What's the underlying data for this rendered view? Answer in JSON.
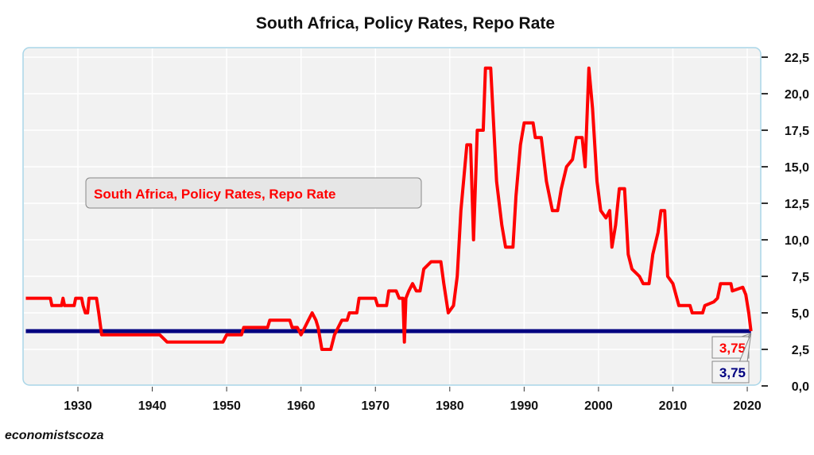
{
  "chart_data": {
    "type": "line",
    "title": "South Africa, Policy Rates, Repo Rate",
    "legend": {
      "label": "South Africa, Policy Rates, Repo Rate",
      "placement": "middle-left"
    },
    "xlim": [
      1923,
      2021.5
    ],
    "ylim": [
      0,
      22.5
    ],
    "x_ticks": [
      "1930",
      "1940",
      "1950",
      "1960",
      "1970",
      "1980",
      "1990",
      "2000",
      "2010",
      "2020"
    ],
    "y_ticks": [
      "0,0",
      "2,5",
      "5,0",
      "7,5",
      "10,0",
      "12,5",
      "15,0",
      "17,5",
      "20,0",
      "22,5"
    ],
    "y_axis_side": "right",
    "grid": true,
    "series": [
      {
        "name": "South Africa, Policy Rates, Repo Rate",
        "color": "#ff0000",
        "points": [
          [
            1923,
            6
          ],
          [
            1926.3,
            6
          ],
          [
            1926.5,
            5.5
          ],
          [
            1927.8,
            5.5
          ],
          [
            1928,
            6
          ],
          [
            1928.2,
            5.5
          ],
          [
            1929.5,
            5.5
          ],
          [
            1929.7,
            6
          ],
          [
            1930.5,
            6
          ],
          [
            1930.7,
            5.5
          ],
          [
            1931,
            5
          ],
          [
            1931.3,
            5
          ],
          [
            1931.5,
            6
          ],
          [
            1932.5,
            6
          ],
          [
            1932.8,
            5
          ],
          [
            1933.2,
            3.5
          ],
          [
            1941,
            3.5
          ],
          [
            1941.5,
            3.25
          ],
          [
            1942,
            3
          ],
          [
            1949.5,
            3
          ],
          [
            1950,
            3.5
          ],
          [
            1952,
            3.5
          ],
          [
            1952.3,
            4
          ],
          [
            1955.5,
            4
          ],
          [
            1955.8,
            4.5
          ],
          [
            1958.5,
            4.5
          ],
          [
            1958.8,
            4
          ],
          [
            1959.5,
            4
          ],
          [
            1960,
            3.5
          ],
          [
            1960.5,
            4
          ],
          [
            1961,
            4.5
          ],
          [
            1961.5,
            5
          ],
          [
            1962,
            4.5
          ],
          [
            1962.3,
            4
          ],
          [
            1962.8,
            2.5
          ],
          [
            1964,
            2.5
          ],
          [
            1964.5,
            3.5
          ],
          [
            1965.5,
            4.5
          ],
          [
            1966.2,
            4.5
          ],
          [
            1966.5,
            5
          ],
          [
            1967.5,
            5
          ],
          [
            1967.8,
            6
          ],
          [
            1970,
            6
          ],
          [
            1970.3,
            5.5
          ],
          [
            1971.5,
            5.5
          ],
          [
            1971.8,
            6.5
          ],
          [
            1972.8,
            6.5
          ],
          [
            1973.2,
            6
          ],
          [
            1973.7,
            6
          ],
          [
            1973.9,
            3
          ],
          [
            1974.1,
            6
          ],
          [
            1974.5,
            6.5
          ],
          [
            1975,
            7
          ],
          [
            1975.5,
            6.5
          ],
          [
            1976,
            6.5
          ],
          [
            1976.5,
            8
          ],
          [
            1977.5,
            8.5
          ],
          [
            1978.8,
            8.5
          ],
          [
            1979.2,
            7
          ],
          [
            1979.8,
            5
          ],
          [
            1980.5,
            5.5
          ],
          [
            1981,
            7.5
          ],
          [
            1981.5,
            12
          ],
          [
            1982.3,
            16.5
          ],
          [
            1982.8,
            16.5
          ],
          [
            1983.2,
            10
          ],
          [
            1983.7,
            17.5
          ],
          [
            1984.5,
            17.5
          ],
          [
            1984.8,
            21.75
          ],
          [
            1985.5,
            21.75
          ],
          [
            1986.3,
            14
          ],
          [
            1987,
            11
          ],
          [
            1987.5,
            9.5
          ],
          [
            1988.5,
            9.5
          ],
          [
            1988.9,
            13
          ],
          [
            1989.5,
            16.5
          ],
          [
            1990,
            18
          ],
          [
            1991.2,
            18
          ],
          [
            1991.5,
            17
          ],
          [
            1992.3,
            17
          ],
          [
            1993,
            14
          ],
          [
            1993.8,
            12
          ],
          [
            1994.5,
            12
          ],
          [
            1995,
            13.5
          ],
          [
            1995.7,
            15
          ],
          [
            1996.5,
            15.5
          ],
          [
            1997,
            17
          ],
          [
            1997.8,
            17
          ],
          [
            1998.2,
            15
          ],
          [
            1998.7,
            21.75
          ],
          [
            1999.2,
            19
          ],
          [
            1999.8,
            14
          ],
          [
            2000.3,
            12
          ],
          [
            2001,
            11.5
          ],
          [
            2001.5,
            12
          ],
          [
            2001.8,
            9.5
          ],
          [
            2002.3,
            11
          ],
          [
            2002.8,
            13.5
          ],
          [
            2003.5,
            13.5
          ],
          [
            2004,
            9
          ],
          [
            2004.5,
            8
          ],
          [
            2005.5,
            7.5
          ],
          [
            2006,
            7
          ],
          [
            2006.8,
            7
          ],
          [
            2007.3,
            9
          ],
          [
            2008,
            10.5
          ],
          [
            2008.4,
            12
          ],
          [
            2008.9,
            12
          ],
          [
            2009.3,
            7.5
          ],
          [
            2010,
            7
          ],
          [
            2010.8,
            5.5
          ],
          [
            2012.3,
            5.5
          ],
          [
            2012.6,
            5
          ],
          [
            2014,
            5
          ],
          [
            2014.3,
            5.5
          ],
          [
            2015.5,
            5.75
          ],
          [
            2016,
            6
          ],
          [
            2016.4,
            7
          ],
          [
            2017.8,
            7
          ],
          [
            2018,
            6.5
          ],
          [
            2019.4,
            6.75
          ],
          [
            2019.8,
            6.25
          ],
          [
            2020.2,
            5
          ],
          [
            2020.5,
            3.75
          ]
        ]
      },
      {
        "color": "#000080",
        "points": [
          [
            1923,
            3.75
          ],
          [
            2020.5,
            3.75
          ]
        ]
      }
    ],
    "end_labels": [
      {
        "text": "3,75",
        "color": "#ff0000"
      },
      {
        "text": "3,75",
        "color": "#000080"
      }
    ]
  },
  "source": "economistscoza"
}
